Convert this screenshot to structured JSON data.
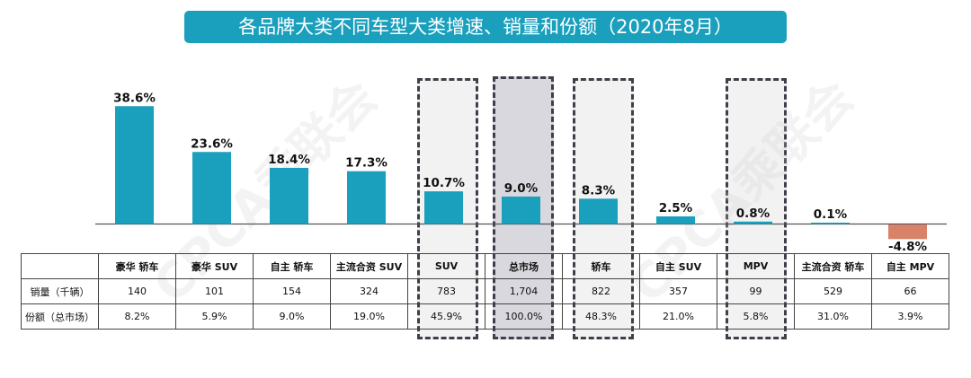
{
  "title": "各品牌大类不同车型大类增速、销量和份额（2020年8月）",
  "watermark": "CPCA乘联会",
  "chart_data": {
    "type": "bar",
    "title": "各品牌大类不同车型大类增速、销量和份额（2020年8月）",
    "categories": [
      "豪华 轿车",
      "豪华 SUV",
      "自主 轿车",
      "主流合资 SUV",
      "SUV",
      "总市场",
      "轿车",
      "自主 SUV",
      "MPV",
      "主流合资 轿车",
      "自主 MPV"
    ],
    "values": [
      38.6,
      23.6,
      18.4,
      17.3,
      10.7,
      9.0,
      8.3,
      2.5,
      0.8,
      0.1,
      -4.8
    ],
    "value_labels": [
      "38.6%",
      "23.6%",
      "18.4%",
      "17.3%",
      "10.7%",
      "9.0%",
      "8.3%",
      "2.5%",
      "0.8%",
      "0.1%",
      "-4.8%"
    ],
    "unit": "%",
    "highlighted": [
      "SUV",
      "总市场",
      "轿车",
      "MPV"
    ],
    "xlabel": "",
    "ylabel": "",
    "ylim": [
      -5,
      40
    ],
    "grid": false,
    "colors": {
      "positive": "#1a9fbd",
      "negative": "#d9826a",
      "axis": "#555555"
    }
  },
  "table": {
    "row_headers": [
      "销量（千辆）",
      "份额（总市场）"
    ],
    "columns": [
      "豪华 轿车",
      "豪华 SUV",
      "自主 轿车",
      "主流合资 SUV",
      "SUV",
      "总市场",
      "轿车",
      "自主 SUV",
      "MPV",
      "主流合资 轿车",
      "自主 MPV"
    ],
    "sales": [
      "140",
      "101",
      "154",
      "324",
      "783",
      "1,704",
      "822",
      "357",
      "99",
      "529",
      "66"
    ],
    "share": [
      "8.2%",
      "5.9%",
      "9.0%",
      "19.0%",
      "45.9%",
      "100.0%",
      "48.3%",
      "21.0%",
      "5.8%",
      "31.0%",
      "3.9%"
    ]
  }
}
